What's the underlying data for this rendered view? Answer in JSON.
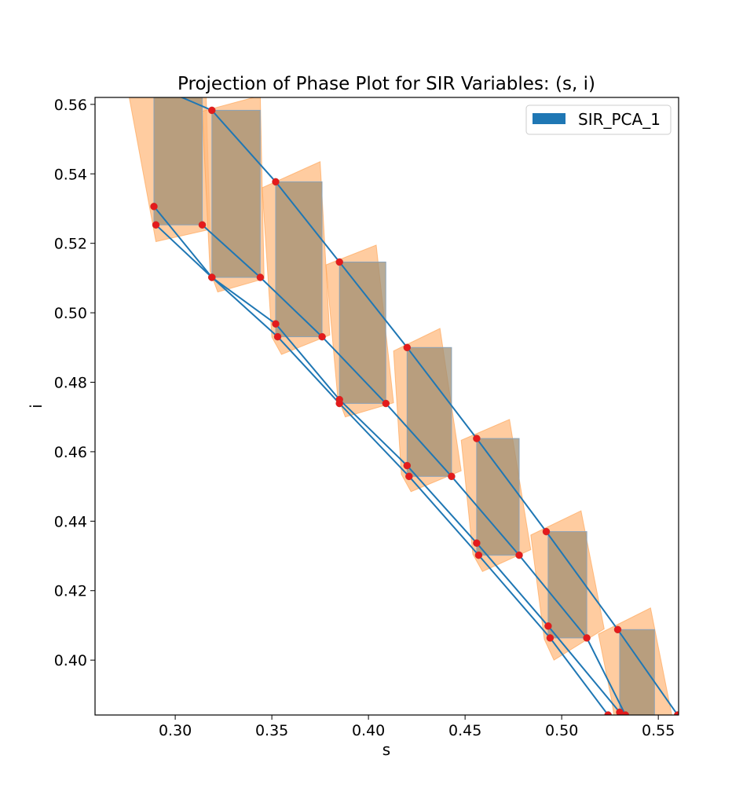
{
  "chart_data": {
    "type": "scatter",
    "title": "Projection of Phase Plot for SIR Variables: (s, i)",
    "xlabel": "s",
    "ylabel": "i",
    "xlim": [
      0.2585,
      0.5605
    ],
    "ylim": [
      0.3842,
      0.562
    ],
    "xticks": [
      "0.30",
      "0.35",
      "0.40",
      "0.45",
      "0.50",
      "0.55"
    ],
    "yticks": [
      "0.40",
      "0.42",
      "0.44",
      "0.46",
      "0.48",
      "0.50",
      "0.52",
      "0.54",
      "0.56"
    ],
    "grid": false,
    "legend": {
      "placement": "top-right",
      "entries": [
        "SIR_PCA_1"
      ]
    },
    "colors": {
      "line": "#1f77b4",
      "box": "#a08f73",
      "hull": "#ffbb80",
      "point": "#e41a1c",
      "legend_patch": "#1f77b4"
    },
    "boxes": [
      {
        "s": [
          0.289,
          0.314
        ],
        "i": [
          0.5253,
          0.5625
        ]
      },
      {
        "s": [
          0.319,
          0.344
        ],
        "i": [
          0.5102,
          0.5583
        ]
      },
      {
        "s": [
          0.352,
          0.376
        ],
        "i": [
          0.4931,
          0.5377
        ]
      },
      {
        "s": [
          0.385,
          0.409
        ],
        "i": [
          0.4739,
          0.5146
        ]
      },
      {
        "s": [
          0.42,
          0.443
        ],
        "i": [
          0.4529,
          0.49
        ]
      },
      {
        "s": [
          0.456,
          0.478
        ],
        "i": [
          0.4302,
          0.4638
        ]
      },
      {
        "s": [
          0.493,
          0.513
        ],
        "i": [
          0.4064,
          0.437
        ]
      },
      {
        "s": [
          0.53,
          0.548
        ],
        "i": [
          0.38,
          0.4088
        ]
      }
    ],
    "hulls": [
      [
        [
          0.276,
          0.5625
        ],
        [
          0.316,
          0.5625
        ],
        [
          0.318,
          0.524
        ],
        [
          0.29,
          0.5205
        ]
      ],
      [
        [
          0.314,
          0.558
        ],
        [
          0.344,
          0.5625
        ],
        [
          0.346,
          0.5098
        ],
        [
          0.322,
          0.506
        ],
        [
          0.318,
          0.512
        ]
      ],
      [
        [
          0.345,
          0.536
        ],
        [
          0.375,
          0.5435
        ],
        [
          0.38,
          0.4936
        ],
        [
          0.355,
          0.488
        ],
        [
          0.35,
          0.493
        ]
      ],
      [
        [
          0.378,
          0.5138
        ],
        [
          0.404,
          0.5195
        ],
        [
          0.413,
          0.4741
        ],
        [
          0.388,
          0.47
        ],
        [
          0.384,
          0.476
        ]
      ],
      [
        [
          0.413,
          0.489
        ],
        [
          0.437,
          0.4955
        ],
        [
          0.448,
          0.4545
        ],
        [
          0.422,
          0.4485
        ],
        [
          0.417,
          0.4535
        ]
      ],
      [
        [
          0.448,
          0.4633
        ],
        [
          0.473,
          0.4693
        ],
        [
          0.484,
          0.4318
        ],
        [
          0.459,
          0.4255
        ],
        [
          0.454,
          0.4305
        ]
      ],
      [
        [
          0.484,
          0.436
        ],
        [
          0.51,
          0.443
        ],
        [
          0.522,
          0.409
        ],
        [
          0.496,
          0.4
        ],
        [
          0.491,
          0.406
        ]
      ],
      [
        [
          0.519,
          0.4075
        ],
        [
          0.546,
          0.415
        ],
        [
          0.557,
          0.3842
        ],
        [
          0.527,
          0.3842
        ],
        [
          0.526,
          0.388
        ]
      ]
    ],
    "series": [
      {
        "points": [
          {
            "s": 0.289,
            "i": 0.5306
          },
          {
            "s": 0.319,
            "i": 0.5102
          },
          {
            "s": 0.352,
            "i": 0.4968
          },
          {
            "s": 0.385,
            "i": 0.475
          },
          {
            "s": 0.42,
            "i": 0.456
          },
          {
            "s": 0.456,
            "i": 0.4337
          },
          {
            "s": 0.493,
            "i": 0.4098
          },
          {
            "s": 0.53,
            "i": 0.385
          }
        ]
      },
      {
        "points": [
          {
            "s": 0.29,
            "i": 0.5253
          },
          {
            "s": 0.319,
            "i": 0.5102
          },
          {
            "s": 0.353,
            "i": 0.4931
          },
          {
            "s": 0.385,
            "i": 0.4739
          },
          {
            "s": 0.421,
            "i": 0.4529
          },
          {
            "s": 0.457,
            "i": 0.4302
          },
          {
            "s": 0.494,
            "i": 0.4064
          },
          {
            "s": 0.524,
            "i": 0.3842
          }
        ]
      },
      {
        "points": [
          {
            "s": 0.314,
            "i": 0.5253
          },
          {
            "s": 0.344,
            "i": 0.5102
          },
          {
            "s": 0.376,
            "i": 0.4931
          },
          {
            "s": 0.409,
            "i": 0.4739
          },
          {
            "s": 0.443,
            "i": 0.4529
          },
          {
            "s": 0.478,
            "i": 0.4302
          },
          {
            "s": 0.513,
            "i": 0.4064
          },
          {
            "s": 0.533,
            "i": 0.3842
          }
        ]
      },
      {
        "points": [
          {
            "s": 0.27,
            "i": 0.57
          },
          {
            "s": 0.319,
            "i": 0.5583
          },
          {
            "s": 0.352,
            "i": 0.5377
          },
          {
            "s": 0.385,
            "i": 0.5146
          },
          {
            "s": 0.42,
            "i": 0.49
          },
          {
            "s": 0.456,
            "i": 0.4638
          },
          {
            "s": 0.492,
            "i": 0.437
          },
          {
            "s": 0.529,
            "i": 0.4088
          },
          {
            "s": 0.56,
            "i": 0.3842
          }
        ]
      }
    ]
  }
}
